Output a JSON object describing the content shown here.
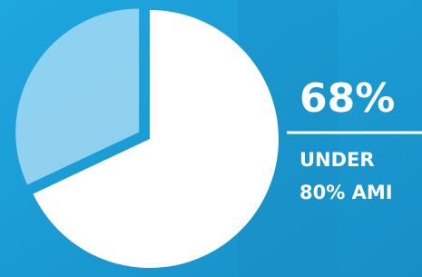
{
  "chart_data": {
    "type": "pie",
    "values": [
      68,
      32
    ],
    "value_labels": [
      "68%",
      null
    ],
    "colors": [
      "#ffffff",
      "#a3d9f3"
    ],
    "annotation": [
      "UNDER",
      "80% AMI"
    ]
  }
}
